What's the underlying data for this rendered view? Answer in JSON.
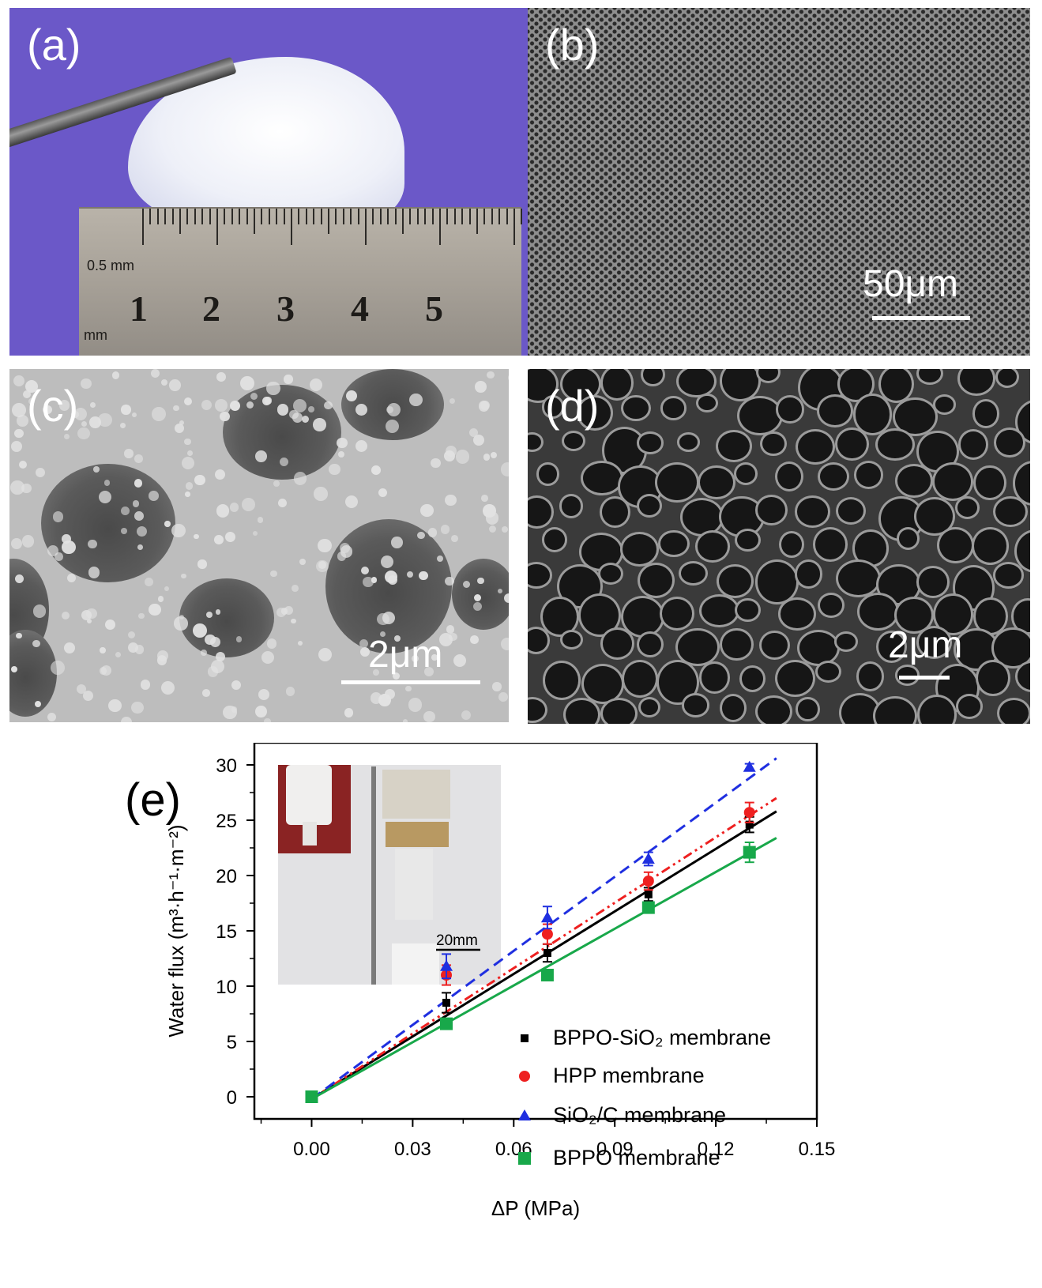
{
  "panels": {
    "a": {
      "label": "(a)",
      "ruler_numbers": [
        "1",
        "2",
        "3",
        "4",
        "5"
      ],
      "ruler_unit_top": "0.5 mm",
      "ruler_unit_bottom": "mm"
    },
    "b": {
      "label": "(b)",
      "scale_text": "50μm"
    },
    "c": {
      "label": "(c)",
      "scale_text": "2μm"
    },
    "d": {
      "label": "(d)",
      "scale_text": "2μm"
    },
    "e": {
      "label": "(e)",
      "inset_scale_text": "20mm"
    }
  },
  "chart_data": {
    "type": "scatter",
    "xlabel": "ΔP (MPa)",
    "ylabel": "Water flux (m³·h⁻¹·m⁻²)",
    "xlim": [
      -0.017,
      0.15
    ],
    "ylim": [
      -2,
      32
    ],
    "xticks": [
      "0.00",
      "0.03",
      "0.06",
      "0.09",
      "0.12",
      "0.15"
    ],
    "yticks": [
      "0",
      "5",
      "10",
      "15",
      "20",
      "25",
      "30"
    ],
    "legend_position": "bottom-right",
    "series": [
      {
        "name": "BPPO-SiO₂ membrane",
        "marker": "square-small",
        "color": "#000000",
        "line": "solid",
        "x": [
          0.0,
          0.04,
          0.07,
          0.1,
          0.13
        ],
        "y": [
          0.0,
          8.5,
          13.0,
          18.3,
          24.6
        ],
        "err": [
          0.3,
          0.9,
          0.8,
          0.6,
          0.7
        ],
        "fit_end": [
          0.138,
          25.8
        ]
      },
      {
        "name": "HPP membrane",
        "marker": "circle",
        "color": "#ee2020",
        "line": "dash-dot-dot",
        "x": [
          0.0,
          0.04,
          0.07,
          0.1,
          0.13
        ],
        "y": [
          0.0,
          11.0,
          14.7,
          19.5,
          25.7
        ],
        "err": [
          0.2,
          0.9,
          0.9,
          0.8,
          0.9
        ],
        "fit_end": [
          0.138,
          27.0
        ]
      },
      {
        "name": "SiO₂/C membrane",
        "marker": "triangle",
        "color": "#1f2fe0",
        "line": "dashed",
        "x": [
          0.0,
          0.04,
          0.07,
          0.1,
          0.13
        ],
        "y": [
          0.0,
          11.8,
          16.2,
          21.5,
          29.8
        ],
        "err": [
          0.2,
          1.1,
          1.0,
          0.6,
          0.3
        ],
        "fit_end": [
          0.138,
          30.6
        ]
      },
      {
        "name": "BPPO membrane",
        "marker": "square",
        "color": "#18a84a",
        "line": "solid",
        "x": [
          0.0,
          0.04,
          0.07,
          0.1,
          0.13
        ],
        "y": [
          0.0,
          6.6,
          11.0,
          17.1,
          22.1
        ],
        "err": [
          0.2,
          0.4,
          0.4,
          0.4,
          0.9
        ],
        "fit_end": [
          0.138,
          23.4
        ]
      }
    ]
  }
}
